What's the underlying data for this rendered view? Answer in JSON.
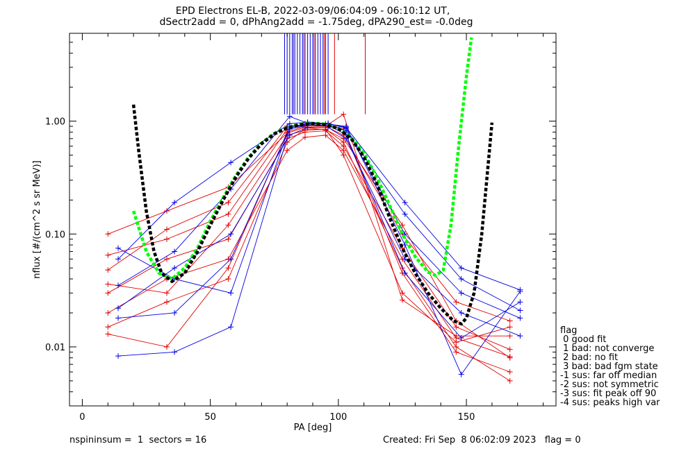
{
  "header": {
    "title_line1": "EPD Electrons EL-B, 2022-03-09/06:04:09 - 06:10:12 UT,",
    "title_line2": "dSectr2add = 0, dPhAng2add = -1.75deg, dPA290_est=  -0.0deg"
  },
  "legend": {
    "title": "flag",
    "items": [
      " 0 good fit",
      " 1 bad: not converge",
      " 2 bad: no fit",
      " 3 bad: bad fgm state",
      "-1 sus: far off median",
      "-2 sus: not symmetric",
      "-3 sus: fit peak off 90",
      "-4 sus: peaks high var"
    ]
  },
  "footer": {
    "left": "nspininsum =  1  sectors = 16",
    "right": "Created: Fri Sep  8 06:02:09 2023   flag = 0"
  },
  "colors": {
    "series_red": "#e00000",
    "series_blue": "#0000e0",
    "fit_green": "#00ff00",
    "fit_black": "#000000",
    "axis": "#000000"
  },
  "chart_data": {
    "type": "line",
    "title": "EPD Electrons EL-B, 2022-03-09/06:04:09 - 06:10:12 UT,",
    "xlabel": "PA [deg]",
    "ylabel": "nflux [#/(cm^2 s sr MeV)]",
    "xlim": [
      -5,
      185
    ],
    "ylim": [
      0.003,
      6.0
    ],
    "yscale": "log",
    "xticks": [
      0,
      50,
      100,
      150
    ],
    "yticks": [
      0.01,
      0.1,
      1.0
    ],
    "ytick_labels": [
      "0.01",
      "0.10",
      "1.00"
    ],
    "grid": false,
    "series": [
      {
        "color": "red",
        "x": [
          10,
          33,
          57,
          80,
          87,
          95,
          102,
          125,
          146,
          167
        ],
        "y": [
          0.1,
          0.16,
          0.26,
          0.78,
          0.88,
          0.84,
          0.7,
          0.12,
          0.017,
          0.008
        ]
      },
      {
        "color": "red",
        "x": [
          10,
          33,
          57,
          80,
          87,
          95,
          102,
          125,
          146,
          167
        ],
        "y": [
          0.048,
          0.11,
          0.19,
          0.9,
          0.93,
          0.9,
          0.75,
          0.1,
          0.025,
          0.017
        ]
      },
      {
        "color": "red",
        "x": [
          10,
          33,
          57,
          80,
          87,
          95,
          102,
          125,
          146,
          167
        ],
        "y": [
          0.03,
          0.06,
          0.09,
          0.7,
          0.8,
          0.82,
          0.6,
          0.075,
          0.015,
          0.0095
        ]
      },
      {
        "color": "red",
        "x": [
          10,
          33,
          57,
          80,
          87,
          95,
          102,
          125,
          146,
          167
        ],
        "y": [
          0.02,
          0.04,
          0.06,
          0.55,
          0.72,
          0.75,
          0.55,
          0.06,
          0.012,
          0.0082
        ]
      },
      {
        "color": "red",
        "x": [
          10,
          33,
          57,
          80,
          87,
          95,
          102,
          125,
          146,
          167
        ],
        "y": [
          0.015,
          0.025,
          0.04,
          0.65,
          0.85,
          0.85,
          0.65,
          0.05,
          0.01,
          0.005
        ]
      },
      {
        "color": "red",
        "x": [
          10,
          33,
          57,
          80,
          87,
          95,
          102,
          125,
          146,
          167
        ],
        "y": [
          0.065,
          0.09,
          0.15,
          0.85,
          0.95,
          0.95,
          0.85,
          0.045,
          0.009,
          0.006
        ]
      },
      {
        "color": "red",
        "x": [
          10,
          33,
          57,
          80,
          87,
          95,
          102,
          125,
          146,
          167
        ],
        "y": [
          0.013,
          0.01,
          0.05,
          0.8,
          0.9,
          0.9,
          1.15,
          0.026,
          0.0125,
          0.0125
        ]
      },
      {
        "color": "red",
        "x": [
          10,
          33,
          57,
          80,
          87,
          95,
          102,
          125,
          146,
          167
        ],
        "y": [
          0.036,
          0.03,
          0.12,
          0.75,
          0.83,
          0.85,
          0.5,
          0.03,
          0.011,
          0.015
        ]
      },
      {
        "color": "blue",
        "x": [
          14,
          36,
          58,
          81,
          88,
          96,
          103,
          126,
          148,
          171
        ],
        "y": [
          0.06,
          0.19,
          0.43,
          0.95,
          0.98,
          0.95,
          0.88,
          0.19,
          0.05,
          0.032
        ]
      },
      {
        "color": "blue",
        "x": [
          14,
          36,
          58,
          81,
          88,
          96,
          103,
          126,
          148,
          171
        ],
        "y": [
          0.0083,
          0.009,
          0.015,
          0.85,
          0.92,
          0.92,
          0.82,
          0.15,
          0.04,
          0.021
        ]
      },
      {
        "color": "blue",
        "x": [
          14,
          36,
          58,
          81,
          88,
          96,
          103,
          126,
          148,
          171
        ],
        "y": [
          0.035,
          0.07,
          0.25,
          1.1,
          0.96,
          0.96,
          0.86,
          0.1,
          0.03,
          0.018
        ]
      },
      {
        "color": "blue",
        "x": [
          14,
          36,
          58,
          81,
          88,
          96,
          103,
          126,
          148,
          171
        ],
        "y": [
          0.022,
          0.05,
          0.1,
          0.75,
          0.88,
          0.88,
          0.7,
          0.06,
          0.02,
          0.0125
        ]
      },
      {
        "color": "blue",
        "x": [
          14,
          36,
          58,
          81,
          88,
          96,
          103,
          126,
          148,
          171
        ],
        "y": [
          0.075,
          0.04,
          0.03,
          0.9,
          0.94,
          0.94,
          0.9,
          0.08,
          0.0057,
          0.031
        ]
      },
      {
        "color": "blue",
        "x": [
          14,
          36,
          58,
          81,
          88,
          96,
          103,
          126,
          148,
          171
        ],
        "y": [
          0.018,
          0.02,
          0.06,
          0.88,
          0.92,
          0.92,
          0.76,
          0.045,
          0.012,
          0.025
        ]
      }
    ],
    "fits": [
      {
        "name": "green fit",
        "x": [
          20,
          25,
          30,
          35,
          40,
          45,
          50,
          55,
          60,
          65,
          70,
          75,
          80,
          85,
          90,
          95,
          100,
          105,
          110,
          115,
          120,
          125,
          130,
          135,
          138,
          141,
          144,
          147,
          150,
          152
        ],
        "y": [
          0.16,
          0.07,
          0.045,
          0.04,
          0.05,
          0.075,
          0.13,
          0.21,
          0.33,
          0.48,
          0.64,
          0.78,
          0.88,
          0.94,
          0.96,
          0.94,
          0.86,
          0.72,
          0.52,
          0.32,
          0.18,
          0.1,
          0.063,
          0.046,
          0.043,
          0.048,
          0.12,
          0.6,
          2.5,
          5.5
        ]
      },
      {
        "name": "black fit",
        "x": [
          20,
          22,
          25,
          28,
          31,
          35,
          40,
          45,
          50,
          55,
          60,
          65,
          70,
          75,
          80,
          85,
          90,
          95,
          100,
          105,
          110,
          115,
          120,
          125,
          130,
          135,
          140,
          145,
          148,
          150,
          153,
          156,
          160
        ],
        "y": [
          1.4,
          0.55,
          0.16,
          0.07,
          0.045,
          0.038,
          0.045,
          0.07,
          0.12,
          0.2,
          0.32,
          0.47,
          0.63,
          0.77,
          0.87,
          0.93,
          0.95,
          0.93,
          0.86,
          0.7,
          0.48,
          0.28,
          0.14,
          0.075,
          0.045,
          0.03,
          0.022,
          0.017,
          0.016,
          0.018,
          0.03,
          0.1,
          0.97
        ]
      }
    ],
    "markers": {
      "blue_x": [
        79,
        80,
        81,
        82,
        83,
        84,
        85,
        86,
        87,
        88,
        89,
        90,
        91,
        92,
        93,
        94,
        95,
        96
      ],
      "red_x": [
        82.5,
        86.5,
        90.5,
        94.5,
        98.5,
        110.5
      ]
    }
  }
}
